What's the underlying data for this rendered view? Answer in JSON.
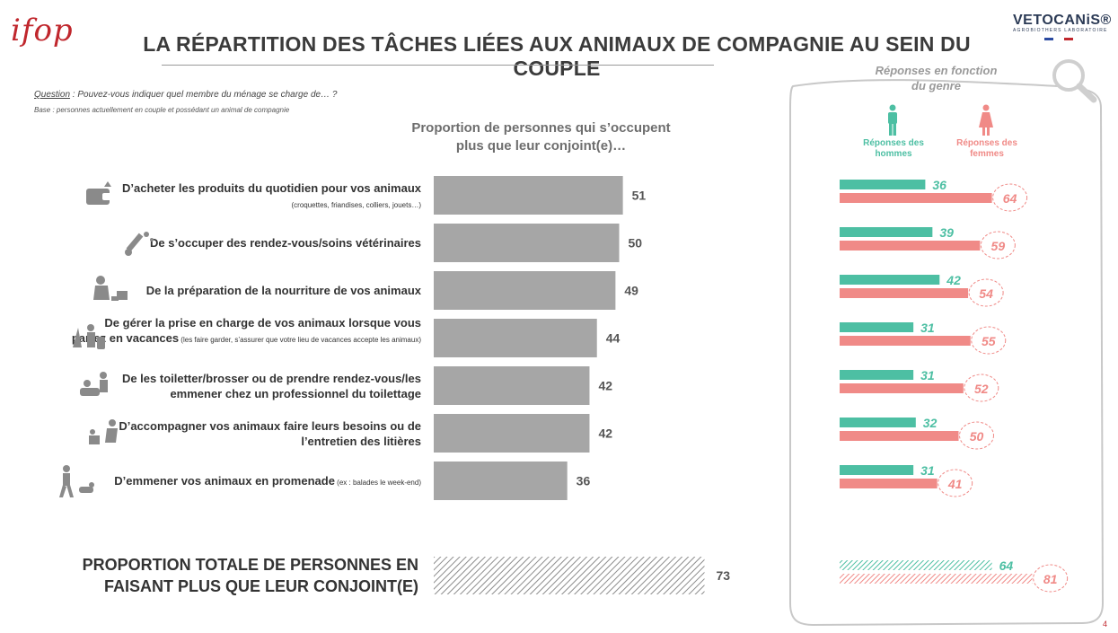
{
  "header": {
    "logo_left": "ifop",
    "title": "LA RÉPARTITION DES TÂCHES LIÉES AUX ANIMAUX DE COMPAGNIE AU SEIN DU COUPLE",
    "logo_right": "VETOCANiS®",
    "logo_right_sub": "AGROBIOTHERS LABORATOIRE"
  },
  "question": {
    "label": "Question",
    "text": " :  Pouvez-vous indiquer quel membre du ménage se charge de… ?",
    "base": "Base : personnes actuellement en couple et possédant un animal de compagnie"
  },
  "chart_header": [
    "Proportion de personnes qui s’occupent",
    "plus que leur conjoint(e)…"
  ],
  "rows": [
    {
      "lines": [
        "D’acheter les produits du quotidien pour vos animaux"
      ],
      "note": "(croquettes, friandises, colliers, jouets…)",
      "icon": "wallet-icon"
    },
    {
      "lines": [
        "De s’occuper des rendez-vous/soins vétérinaires"
      ],
      "note": "",
      "icon": "syringe-paw-icon"
    },
    {
      "lines": [
        "De la préparation de la nourriture de vos animaux"
      ],
      "note": "",
      "icon": "feeding-dog-icon"
    },
    {
      "lines": [
        "De gérer la prise en charge de vos animaux lorsque vous",
        "partez en vacances"
      ],
      "note": " (les faire garder, s’assurer que votre lieu de vacances accepte les animaux)",
      "icon": "vacation-icon"
    },
    {
      "lines": [
        "De les toiletter/brosser ou de prendre rendez-vous/les",
        "emmener chez un professionnel du toilettage"
      ],
      "note": "",
      "icon": "grooming-icon"
    },
    {
      "lines": [
        "D’accompagner vos animaux faire leurs besoins ou de",
        "l’entretien des litières"
      ],
      "note": "",
      "icon": "litter-icon"
    },
    {
      "lines": [
        "D’emmener vos animaux en promenade"
      ],
      "note": " (ex : balades le week-end)",
      "icon": "walking-dog-icon"
    }
  ],
  "total_label": [
    "PROPORTION TOTALE DE PERSONNES EN",
    "FAISANT PLUS QUE LEUR CONJOINT(E)"
  ],
  "side_panel": {
    "title": [
      "Réponses en fonction",
      "du genre"
    ],
    "men_label": [
      "Réponses des",
      "hommes"
    ],
    "women_label": [
      "Réponses des",
      "femmes"
    ]
  },
  "colors": {
    "bar_gray": "#a6a6a6",
    "men": "#4dbfa3",
    "women": "#f08a87",
    "title": "#3b3b3b",
    "ifop_red": "#c0272d"
  },
  "chart_data": {
    "type": "bar",
    "orientation": "horizontal",
    "categories": [
      "D’acheter les produits du quotidien pour vos animaux",
      "De s’occuper des rendez-vous/soins vétérinaires",
      "De la préparation de la nourriture de vos animaux",
      "De gérer la prise en charge de vos animaux lorsque vous partez en vacances",
      "De les toiletter/brosser ou de prendre rendez-vous/les emmener chez un professionnel du toilettage",
      "D’accompagner vos animaux faire leurs besoins ou de l’entretien des litières",
      "D’emmener vos animaux en promenade"
    ],
    "series": [
      {
        "name": "",
        "values": [
          51,
          50,
          49,
          44,
          42,
          42,
          36
        ]
      },
      {
        "name": "Réponses des hommes",
        "values": [
          36,
          39,
          42,
          31,
          31,
          32,
          31
        ]
      },
      {
        "name": "Réponses des femmes",
        "values": [
          64,
          59,
          54,
          55,
          52,
          50,
          41
        ]
      }
    ],
    "total": {
      "overall": 73,
      "men": 64,
      "women": 81
    }
  },
  "page_number": "4"
}
